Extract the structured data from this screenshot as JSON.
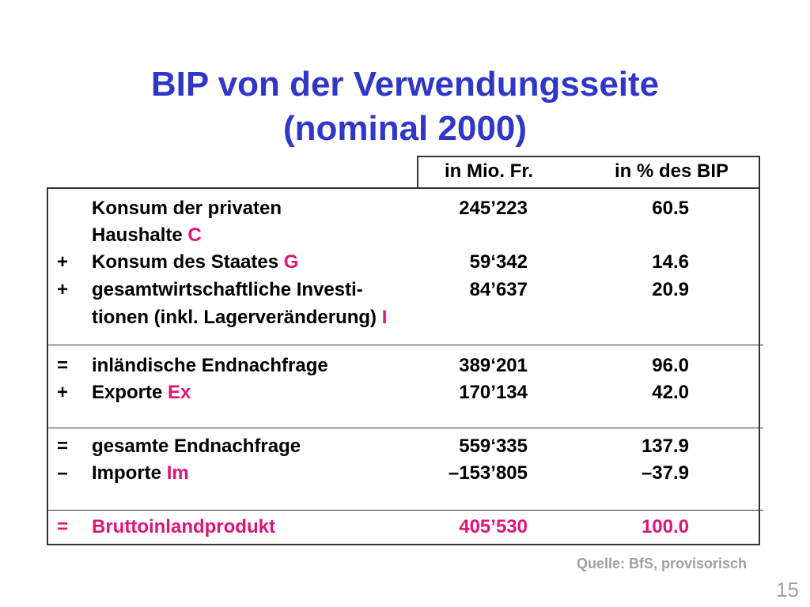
{
  "title": {
    "line1": "BIP von der Verwendungsseite",
    "line2": "(nominal 2000)"
  },
  "columns": {
    "mio": "in Mio. Fr.",
    "pct": "in % des BIP"
  },
  "rows": [
    {
      "op": "",
      "label": "Konsum der privaten",
      "accent": "",
      "mio": "245’223",
      "pct": "60.5"
    },
    {
      "op": "",
      "label": "Haushalte ",
      "accent": "C",
      "mio": "",
      "pct": ""
    },
    {
      "op": "+",
      "label": "Konsum des Staates ",
      "accent": "G",
      "mio": "59‘342",
      "pct": "14.6"
    },
    {
      "op": "+",
      "label": "gesamtwirtschaftliche Investi-",
      "accent": "",
      "mio": "84’637",
      "pct": "20.9"
    },
    {
      "op": "",
      "label": "tionen (inkl. Lagerveränderung) ",
      "accent": "I",
      "mio": "",
      "pct": ""
    },
    {
      "op": "=",
      "label": "inländische Endnachfrage",
      "accent": "",
      "mio": "389‘201",
      "pct": "96.0"
    },
    {
      "op": "+",
      "label": "Exporte ",
      "accent": "Ex",
      "mio": "170’134",
      "pct": "42.0"
    },
    {
      "op": "=",
      "label": "gesamte Endnachfrage",
      "accent": "",
      "mio": "559‘335",
      "pct": "137.9"
    },
    {
      "op": "–",
      "label": "Importe ",
      "accent": "Im",
      "mio": "–153’805",
      "pct": "–37.9"
    },
    {
      "op": "=",
      "label": "Bruttoinlandprodukt",
      "accent": "",
      "mio": "405’530",
      "pct": "100.0"
    }
  ],
  "source": "Quelle: BfS, provisorisch",
  "page_number": "15",
  "colors": {
    "title": "#2f36c8",
    "accent": "#e0137a",
    "muted": "#a0a0a0"
  }
}
